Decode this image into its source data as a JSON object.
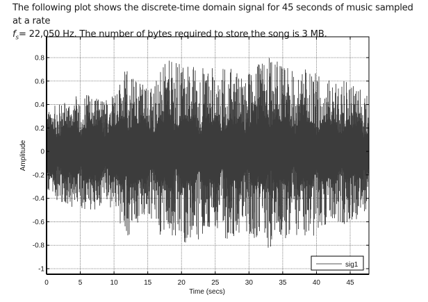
{
  "caption": {
    "line1": "The following plot shows the discrete-time domain signal for 45 seconds of music sampled at a rate",
    "line2_symbol": "f",
    "line2_subscript": "s",
    "line2_rest": "= 22,050 Hz. The number of bytes required to store the song is 3 MB."
  },
  "chart_data": {
    "type": "line",
    "title": "",
    "xlabel": "Time (secs)",
    "ylabel": "Amplitude",
    "xlim": [
      0,
      48
    ],
    "ylim": [
      -1.05,
      0.96
    ],
    "xticks": [
      0,
      5,
      10,
      15,
      20,
      25,
      30,
      35,
      40,
      45
    ],
    "yticks": [
      -1,
      -0.8,
      -0.6,
      -0.4,
      -0.2,
      0,
      0.2,
      0.4,
      0.6,
      0.8
    ],
    "xtick_labels": [
      "0",
      "5",
      "10",
      "15",
      "20",
      "25",
      "30",
      "35",
      "40",
      "45"
    ],
    "ytick_labels": [
      "-1",
      "-0.8",
      "-0.6",
      "-0.4",
      "-0.2",
      "0",
      "0.2",
      "0.4",
      "0.6",
      "0.8"
    ],
    "grid": true,
    "legend": {
      "entries": [
        "sig1"
      ],
      "position": "lower right"
    },
    "series": [
      {
        "name": "sig1",
        "color": "#3c3c3c",
        "description": "Dense audio waveform, 45 s at 22,050 Hz; envelope (approx. peak |amplitude|) sampled every 3 s",
        "envelope_time": [
          0,
          3,
          6,
          9,
          12,
          15,
          18,
          21,
          24,
          27,
          30,
          33,
          36,
          39,
          42,
          45,
          47.5
        ],
        "envelope_peak": [
          0.35,
          0.45,
          0.5,
          0.45,
          0.72,
          0.55,
          0.78,
          0.75,
          0.72,
          0.72,
          0.68,
          0.82,
          0.7,
          0.72,
          0.6,
          0.6,
          0.5
        ],
        "rms_band": [
          0.17,
          0.2,
          0.22,
          0.2,
          0.26,
          0.22,
          0.26,
          0.25,
          0.25,
          0.24,
          0.24,
          0.26,
          0.24,
          0.24,
          0.22,
          0.22,
          0.2
        ],
        "min_observed": -0.9,
        "max_observed": 0.82
      }
    ]
  },
  "colors": {
    "signal": "#3c3c3c",
    "axis": "#000000",
    "grid": "#555555",
    "legend_line": "#777777"
  }
}
